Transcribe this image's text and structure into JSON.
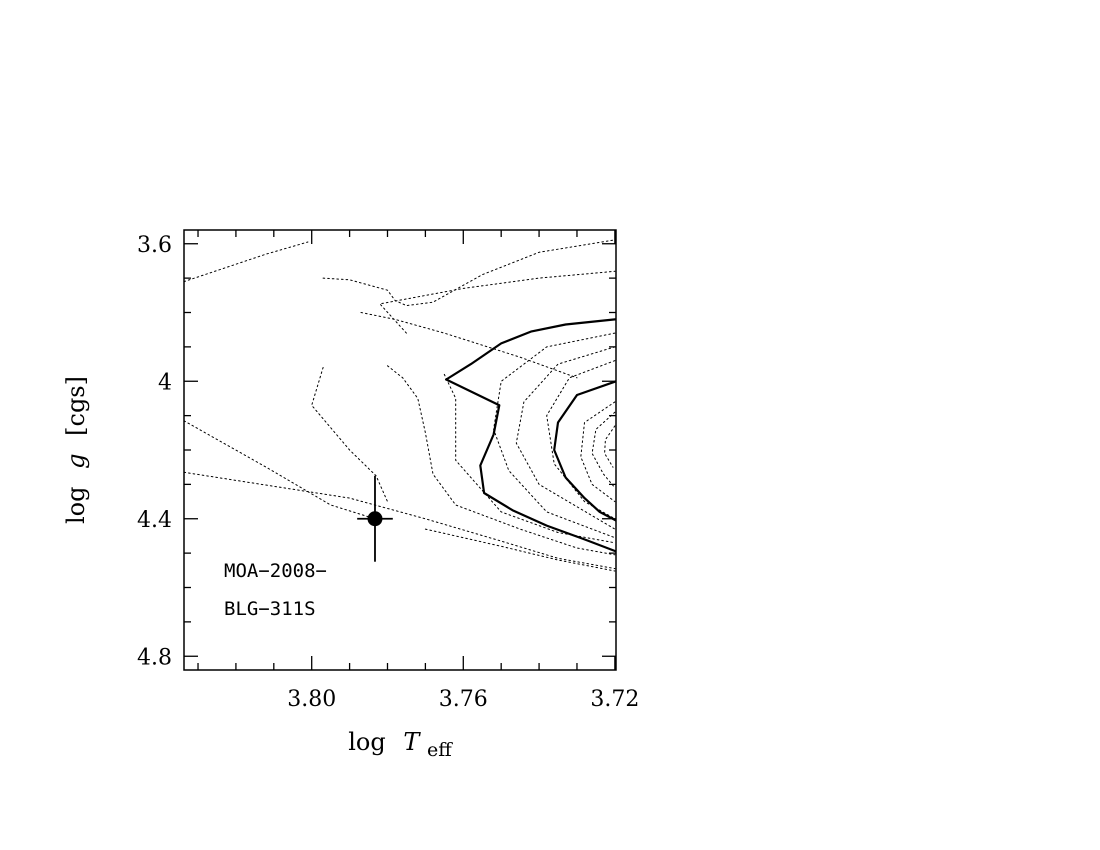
{
  "chart_data": {
    "type": "line",
    "xlabel": "log T_eff",
    "xlabel_parts": {
      "prefix": "log",
      "symbol": "T",
      "subscript": "eff"
    },
    "ylabel": "log g [cgs]",
    "ylabel_parts": {
      "prefix": "log",
      "symbol": "g",
      "suffix": "[cgs]"
    },
    "xlim": [
      3.8337,
      3.7197
    ],
    "ylim": [
      3.56,
      4.84
    ],
    "x_inverted": true,
    "y_inverted": true,
    "x_ticks": [
      3.8,
      3.76,
      3.72
    ],
    "x_tick_labels": [
      "3.80",
      "3.76",
      "3.72"
    ],
    "y_ticks": [
      3.6,
      4.0,
      4.4,
      4.8
    ],
    "y_tick_labels": [
      "3.6",
      "4",
      "4.4",
      "4.8"
    ],
    "annotation_lines": [
      "MOA−2008−",
      "BLG−311S"
    ],
    "grid": false,
    "legend": "none",
    "point": {
      "x": 3.7833,
      "y": 4.4,
      "xerr": 0.0047,
      "yerr": 0.125
    },
    "series": [
      {
        "style": "dotted",
        "points": [
          [
            3.8337,
            3.71
          ],
          [
            3.812,
            3.63
          ],
          [
            3.801,
            3.595
          ]
        ]
      },
      {
        "style": "dotted",
        "points": [
          [
            3.797,
            3.7
          ],
          [
            3.79,
            3.705
          ],
          [
            3.78,
            3.735
          ],
          [
            3.778,
            3.765
          ],
          [
            3.775,
            3.78
          ],
          [
            3.768,
            3.77
          ],
          [
            3.755,
            3.69
          ],
          [
            3.74,
            3.625
          ],
          [
            3.718,
            3.585
          ]
        ]
      },
      {
        "style": "dotted",
        "points": [
          [
            3.787,
            3.8
          ],
          [
            3.778,
            3.82
          ],
          [
            3.765,
            3.86
          ],
          [
            3.745,
            3.93
          ],
          [
            3.73,
            3.99
          ]
        ]
      },
      {
        "style": "dotted",
        "points": [
          [
            3.775,
            3.86
          ],
          [
            3.782,
            3.775
          ],
          [
            3.76,
            3.73
          ],
          [
            3.74,
            3.7
          ],
          [
            3.72,
            3.68
          ]
        ]
      },
      {
        "style": "dotted",
        "points": [
          [
            3.8337,
            4.115
          ],
          [
            3.812,
            4.25
          ],
          [
            3.795,
            4.36
          ],
          [
            3.7833,
            4.4
          ]
        ]
      },
      {
        "style": "dotted",
        "points": [
          [
            3.8337,
            4.265
          ],
          [
            3.79,
            4.34
          ],
          [
            3.77,
            4.4
          ],
          [
            3.75,
            4.465
          ],
          [
            3.735,
            4.515
          ],
          [
            3.72,
            4.545
          ]
        ]
      },
      {
        "style": "dotted",
        "points": [
          [
            3.77,
            4.43
          ],
          [
            3.75,
            4.48
          ],
          [
            3.735,
            4.52
          ],
          [
            3.72,
            4.552
          ]
        ]
      },
      {
        "style": "dotted",
        "points": [
          [
            3.797,
            3.96
          ],
          [
            3.8,
            4.07
          ],
          [
            3.79,
            4.2
          ],
          [
            3.783,
            4.275
          ],
          [
            3.78,
            4.35
          ]
        ]
      },
      {
        "style": "dotted",
        "points": [
          [
            3.78,
            3.955
          ],
          [
            3.776,
            3.99
          ],
          [
            3.772,
            4.05
          ],
          [
            3.77,
            4.15
          ],
          [
            3.768,
            4.27
          ],
          [
            3.762,
            4.36
          ],
          [
            3.745,
            4.43
          ],
          [
            3.73,
            4.485
          ],
          [
            3.72,
            4.505
          ]
        ]
      },
      {
        "style": "dotted",
        "points": [
          [
            3.765,
            3.98
          ],
          [
            3.762,
            4.05
          ],
          [
            3.762,
            4.23
          ],
          [
            3.75,
            4.38
          ],
          [
            3.735,
            4.44
          ],
          [
            3.72,
            4.47
          ]
        ]
      },
      {
        "style": "dotted",
        "points": [
          [
            3.72,
            3.86
          ],
          [
            3.738,
            3.9
          ],
          [
            3.75,
            4.0
          ],
          [
            3.752,
            4.14
          ],
          [
            3.748,
            4.26
          ],
          [
            3.738,
            4.38
          ],
          [
            3.72,
            4.455
          ]
        ]
      },
      {
        "style": "dotted",
        "points": [
          [
            3.72,
            3.9
          ],
          [
            3.735,
            3.95
          ],
          [
            3.744,
            4.06
          ],
          [
            3.746,
            4.18
          ],
          [
            3.74,
            4.3
          ],
          [
            3.72,
            4.43
          ]
        ]
      },
      {
        "style": "dotted",
        "points": [
          [
            3.72,
            3.94
          ],
          [
            3.732,
            3.99
          ],
          [
            3.738,
            4.1
          ],
          [
            3.736,
            4.24
          ],
          [
            3.728,
            4.35
          ],
          [
            3.72,
            4.4
          ]
        ]
      },
      {
        "style": "dotted",
        "points": [
          [
            3.72,
            4.06
          ],
          [
            3.728,
            4.12
          ],
          [
            3.729,
            4.22
          ],
          [
            3.726,
            4.3
          ],
          [
            3.72,
            4.35
          ]
        ]
      },
      {
        "style": "dotted",
        "points": [
          [
            3.72,
            4.09
          ],
          [
            3.725,
            4.14
          ],
          [
            3.726,
            4.21
          ],
          [
            3.723,
            4.27
          ],
          [
            3.72,
            4.31
          ]
        ]
      },
      {
        "style": "dotted",
        "points": [
          [
            3.72,
            4.13
          ],
          [
            3.7225,
            4.17
          ],
          [
            3.7227,
            4.21
          ],
          [
            3.7205,
            4.25
          ]
        ]
      },
      {
        "style": "solid",
        "points": [
          [
            3.7645,
            3.995
          ],
          [
            3.758,
            3.95
          ],
          [
            3.75,
            3.89
          ],
          [
            3.742,
            3.855
          ],
          [
            3.733,
            3.835
          ],
          [
            3.72,
            3.82
          ],
          [
            3.7197,
            3.82
          ]
        ]
      },
      {
        "style": "solid",
        "points": [
          [
            3.7645,
            3.995
          ],
          [
            3.7505,
            4.07
          ],
          [
            3.752,
            4.155
          ],
          [
            3.7555,
            4.245
          ],
          [
            3.7545,
            4.325
          ],
          [
            3.747,
            4.375
          ],
          [
            3.738,
            4.42
          ],
          [
            3.728,
            4.46
          ],
          [
            3.7197,
            4.495
          ]
        ]
      },
      {
        "style": "solid",
        "points": [
          [
            3.7197,
            4.0
          ],
          [
            3.73,
            4.04
          ],
          [
            3.735,
            4.12
          ],
          [
            3.736,
            4.2
          ],
          [
            3.733,
            4.28
          ],
          [
            3.728,
            4.34
          ],
          [
            3.724,
            4.38
          ],
          [
            3.7197,
            4.405
          ]
        ]
      }
    ]
  }
}
